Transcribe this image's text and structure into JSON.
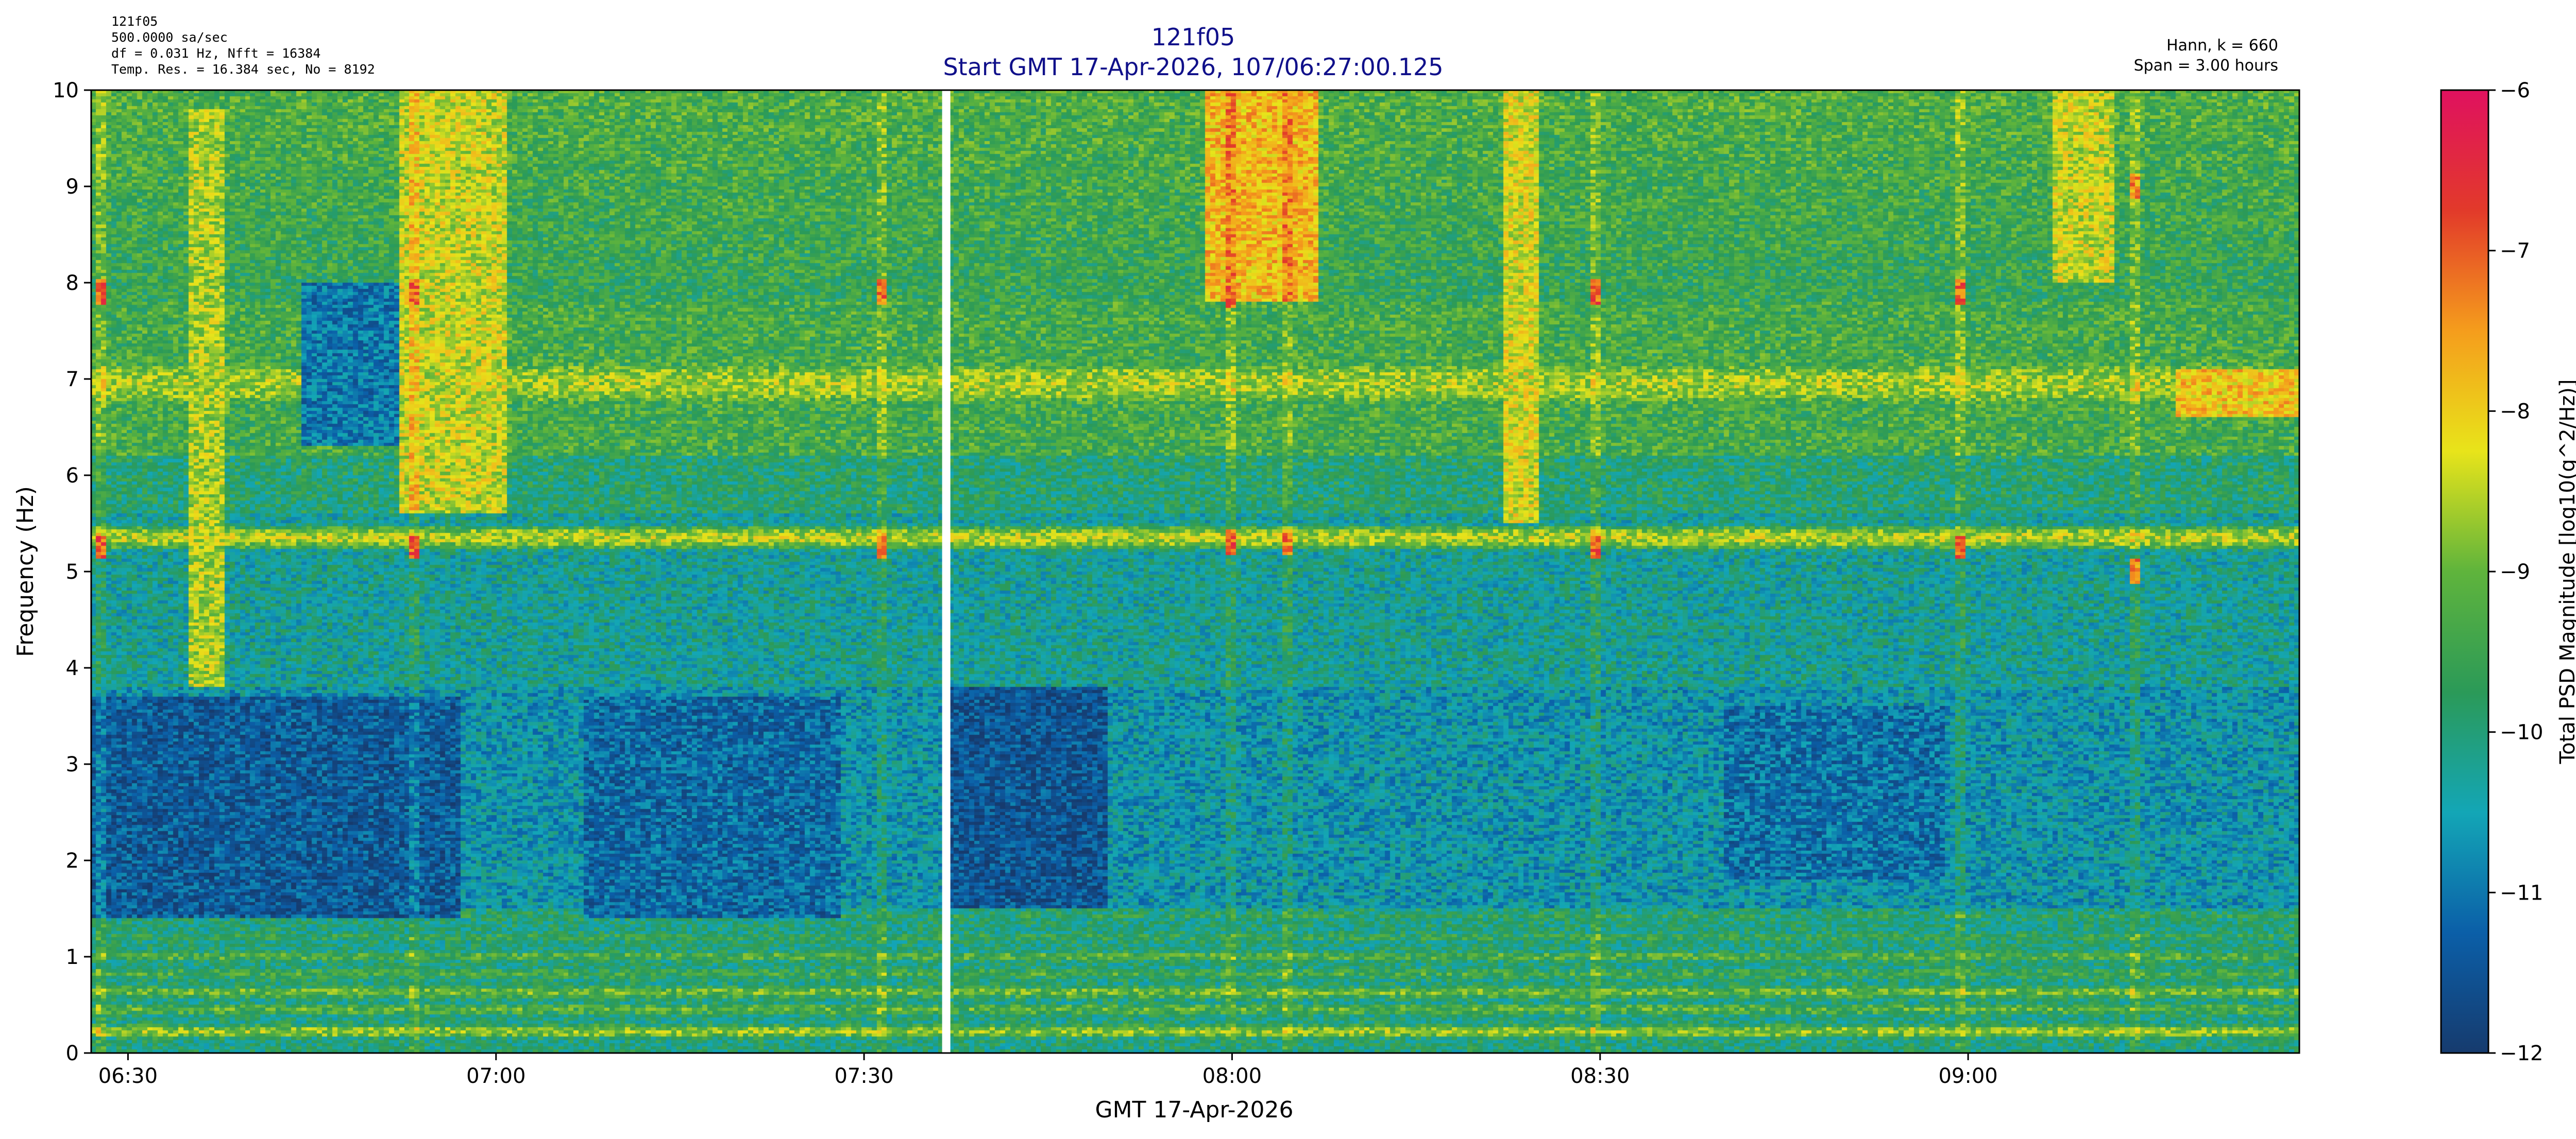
{
  "chart_data": {
    "type": "heatmap",
    "title": "121f05",
    "subtitle": "Start GMT 17-Apr-2026, 107/06:27:00.125",
    "info_left": [
      "121f05",
      "500.0000 sa/sec",
      "df = 0.031 Hz,  Nfft = 16384",
      "Temp. Res. = 16.384 sec, No = 8192"
    ],
    "info_right": [
      "Hann, k = 660",
      "Span = 3.00 hours"
    ],
    "xlabel": "GMT 17-Apr-2026",
    "ylabel": "Frequency (Hz)",
    "colorbar_label": "Total PSD Magnitude [log10(g^2/Hz)]",
    "x_start_min": 387,
    "x_end_min": 567,
    "gap_min": 456.7,
    "x_ticks": [
      {
        "min": 390,
        "label": "06:30"
      },
      {
        "min": 420,
        "label": "07:00"
      },
      {
        "min": 450,
        "label": "07:30"
      },
      {
        "min": 480,
        "label": "08:00"
      },
      {
        "min": 510,
        "label": "08:30"
      },
      {
        "min": 540,
        "label": "09:00"
      }
    ],
    "ylim": [
      0,
      10
    ],
    "y_ticks": [
      "0",
      "1",
      "2",
      "3",
      "4",
      "5",
      "6",
      "7",
      "8",
      "9",
      "10"
    ],
    "clim": [
      -12,
      -6
    ],
    "c_ticks": [
      "−12",
      "−11",
      "−10",
      "−9",
      "−8",
      "−7",
      "−6"
    ],
    "colormap": [
      "#163b6e",
      "#0b5fa8",
      "#13a6b6",
      "#2b9a58",
      "#5fb43c",
      "#e8e41a",
      "#f59d1c",
      "#e23a2a",
      "#e0115f"
    ],
    "bands": [
      {
        "f": 0.22,
        "level": -8.7,
        "w": 0.05
      },
      {
        "f": 0.45,
        "level": -9.2,
        "w": 0.05
      },
      {
        "f": 0.63,
        "level": -9.0,
        "w": 0.05
      },
      {
        "f": 0.82,
        "level": -9.4,
        "w": 0.05
      },
      {
        "f": 1.0,
        "level": -9.3,
        "w": 0.05
      },
      {
        "f": 1.2,
        "level": -9.6,
        "w": 0.05
      },
      {
        "f": 1.42,
        "level": -9.7,
        "w": 0.05
      },
      {
        "f": 5.35,
        "level": -8.5,
        "w": 0.08
      },
      {
        "f": 6.95,
        "level": -8.6,
        "w": 0.18
      }
    ],
    "hot_blocks": [
      {
        "t0": 395,
        "t1": 398,
        "f0": 3.8,
        "f1": 9.8,
        "level": -8.6
      },
      {
        "t0": 412,
        "t1": 421,
        "f0": 5.6,
        "f1": 10,
        "level": -8.4
      },
      {
        "t0": 478,
        "t1": 487,
        "f0": 7.8,
        "f1": 10,
        "level": -7.8
      },
      {
        "t0": 502,
        "t1": 505,
        "f0": 5.5,
        "f1": 10,
        "level": -8.3
      },
      {
        "t0": 547,
        "t1": 552,
        "f0": 8.0,
        "f1": 10,
        "level": -8.4
      },
      {
        "t0": 557,
        "t1": 567,
        "f0": 6.6,
        "f1": 7.1,
        "level": -7.9
      }
    ],
    "cold_blocks": [
      {
        "t0": 387,
        "t1": 417,
        "f0": 1.4,
        "f1": 3.7,
        "level": -11.4
      },
      {
        "t0": 404,
        "t1": 412,
        "f0": 6.3,
        "f1": 8.0,
        "level": -11.0
      },
      {
        "t0": 427,
        "t1": 448,
        "f0": 1.4,
        "f1": 3.7,
        "level": -11.2
      },
      {
        "t0": 457,
        "t1": 470,
        "f0": 1.5,
        "f1": 3.8,
        "level": -11.5
      },
      {
        "t0": 520,
        "t1": 538,
        "f0": 1.8,
        "f1": 3.6,
        "level": -11.1
      }
    ],
    "spikes": [
      {
        "min": 388,
        "f": 7.9,
        "f2": 5.25,
        "level": -7.0
      },
      {
        "min": 413.3,
        "f": 7.9,
        "f2": 5.25,
        "level": -7.0
      },
      {
        "min": 451.5,
        "f": 7.9,
        "f2": 5.25,
        "level": -7.2
      },
      {
        "min": 479.8,
        "f": 7.85,
        "f2": 5.3,
        "level": -7.0
      },
      {
        "min": 484.5,
        "f": 8.6,
        "f2": 5.3,
        "level": -7.3
      },
      {
        "min": 509.7,
        "f": 7.9,
        "f2": 5.25,
        "level": -7.0
      },
      {
        "min": 539.5,
        "f": 7.9,
        "f2": 5.25,
        "level": -7.0
      },
      {
        "min": 553.5,
        "f": 9.0,
        "f2": 5.0,
        "level": -7.4
      }
    ]
  }
}
